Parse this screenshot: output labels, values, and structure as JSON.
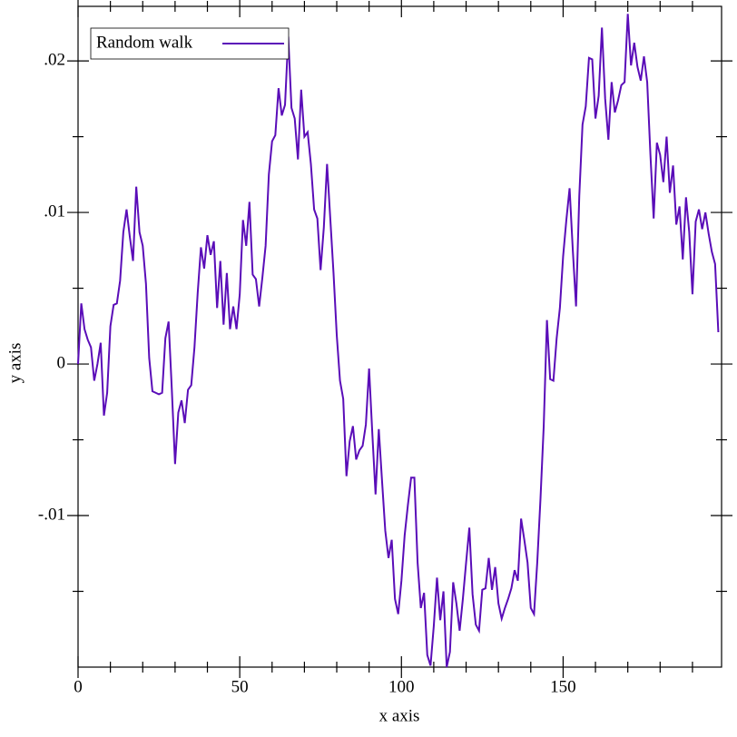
{
  "chart_data": {
    "type": "line",
    "x_label": "x axis",
    "y_label": "y axis",
    "x": [
      0,
      1,
      2,
      3,
      4,
      5,
      6,
      7,
      8,
      9,
      10,
      11,
      12,
      13,
      14,
      15,
      16,
      17,
      18,
      19,
      20,
      21,
      22,
      23,
      24,
      25,
      26,
      27,
      28,
      29,
      30,
      31,
      32,
      33,
      34,
      35,
      36,
      37,
      38,
      39,
      40,
      41,
      42,
      43,
      44,
      45,
      46,
      47,
      48,
      49,
      50,
      51,
      52,
      53,
      54,
      55,
      56,
      57,
      58,
      59,
      60,
      61,
      62,
      63,
      64,
      65,
      66,
      67,
      68,
      69,
      70,
      71,
      72,
      73,
      74,
      75,
      76,
      77,
      78,
      79,
      80,
      81,
      82,
      83,
      84,
      85,
      86,
      87,
      88,
      89,
      90,
      91,
      92,
      93,
      94,
      95,
      96,
      97,
      98,
      99,
      100,
      101,
      102,
      103,
      104,
      105,
      106,
      107,
      108,
      109,
      110,
      111,
      112,
      113,
      114,
      115,
      116,
      117,
      118,
      119,
      120,
      121,
      122,
      123,
      124,
      125,
      126,
      127,
      128,
      129,
      130,
      131,
      132,
      133,
      134,
      135,
      136,
      137,
      138,
      139,
      140,
      141,
      142,
      143,
      144,
      145,
      146,
      147,
      148,
      149,
      150,
      151,
      152,
      153,
      154,
      155,
      156,
      157,
      158,
      159,
      160,
      161,
      162,
      163,
      164,
      165,
      166,
      167,
      168,
      169,
      170,
      171,
      172,
      173,
      174,
      175,
      176,
      177,
      178,
      179,
      180,
      181,
      182,
      183,
      184,
      185,
      186,
      187,
      188,
      189,
      190,
      191,
      192,
      193,
      194,
      195,
      196,
      197,
      198
    ],
    "series": [
      {
        "name": "Random walk",
        "color": "#5a0db8",
        "values": [
          0,
          0.004,
          0.0023,
          0.0016,
          0.0011,
          -0.0011,
          0,
          0.0014,
          -0.0034,
          -0.0019,
          0.0025,
          0.0039,
          0.004,
          0.0055,
          0.0087,
          0.0102,
          0.0084,
          0.0068,
          0.0117,
          0.0087,
          0.0078,
          0.0053,
          0.0004,
          -0.0018,
          -0.0019,
          -0.002,
          -0.0019,
          0.0017,
          0.0028,
          -0.0017,
          -0.0066,
          -0.0032,
          -0.0024,
          -0.0039,
          -0.0017,
          -0.0014,
          0.0011,
          0.0047,
          0.0077,
          0.0063,
          0.0085,
          0.0072,
          0.0081,
          0.0037,
          0.0068,
          0.0026,
          0.006,
          0.0023,
          0.0038,
          0.0023,
          0.0046,
          0.0095,
          0.0078,
          0.0107,
          0.0059,
          0.0056,
          0.0038,
          0.0057,
          0.0078,
          0.0125,
          0.0147,
          0.0151,
          0.0182,
          0.0164,
          0.0171,
          0.0216,
          0.0169,
          0.0162,
          0.0135,
          0.0181,
          0.015,
          0.0153,
          0.0132,
          0.0102,
          0.0096,
          0.0062,
          0.009,
          0.0132,
          0.0096,
          0.006,
          0.0019,
          -0.0011,
          -0.0023,
          -0.0074,
          -0.0051,
          -0.0041,
          -0.0063,
          -0.0057,
          -0.0054,
          -0.004,
          -0.0003,
          -0.0046,
          -0.0086,
          -0.0043,
          -0.0077,
          -0.011,
          -0.0128,
          -0.0116,
          -0.0155,
          -0.0165,
          -0.0143,
          -0.0113,
          -0.0093,
          -0.0075,
          -0.0075,
          -0.0131,
          -0.0161,
          -0.0151,
          -0.0192,
          -0.0199,
          -0.0173,
          -0.0141,
          -0.0169,
          -0.015,
          -0.02,
          -0.019,
          -0.0144,
          -0.0158,
          -0.0176,
          -0.0155,
          -0.0131,
          -0.0108,
          -0.0152,
          -0.0172,
          -0.0176,
          -0.0149,
          -0.0148,
          -0.0128,
          -0.0149,
          -0.0134,
          -0.0158,
          -0.0168,
          -0.0161,
          -0.0155,
          -0.0148,
          -0.0136,
          -0.0143,
          -0.0102,
          -0.0116,
          -0.0131,
          -0.0161,
          -0.0165,
          -0.0131,
          -0.0089,
          -0.0041,
          0.0029,
          -0.001,
          -0.0011,
          0.0017,
          0.0037,
          0.0071,
          0.0095,
          0.0116,
          0.0075,
          0.0038,
          0.0111,
          0.0158,
          0.017,
          0.0202,
          0.0201,
          0.0162,
          0.0177,
          0.0222,
          0.0175,
          0.0148,
          0.0186,
          0.0166,
          0.0174,
          0.0184,
          0.0186,
          0.0231,
          0.0197,
          0.0212,
          0.0196,
          0.0187,
          0.0203,
          0.0186,
          0.0138,
          0.0096,
          0.0146,
          0.0138,
          0.012,
          0.015,
          0.0113,
          0.0131,
          0.0092,
          0.0104,
          0.0069,
          0.011,
          0.0087,
          0.0046,
          0.0094,
          0.0102,
          0.0089,
          0.01,
          0.0086,
          0.0074,
          0.0066,
          0.0021
        ]
      }
    ],
    "xlim": [
      0,
      199
    ],
    "ylim": [
      -0.02,
      0.0236
    ],
    "xticks": [
      0,
      50,
      100,
      150
    ],
    "yticks": [
      {
        "value": -0.01,
        "label": "-.01"
      },
      0,
      {
        "value": 0.01,
        "label": ".01"
      },
      {
        "value": 0.02,
        "label": ".02"
      }
    ],
    "x_minor_ticks": [
      10,
      20,
      30,
      40,
      60,
      70,
      80,
      90,
      110,
      120,
      130,
      140,
      160,
      170,
      180,
      190
    ],
    "y_minor_ticks": [
      -0.015,
      -0.005,
      0.005,
      0.015
    ],
    "legend": "upper-left"
  }
}
